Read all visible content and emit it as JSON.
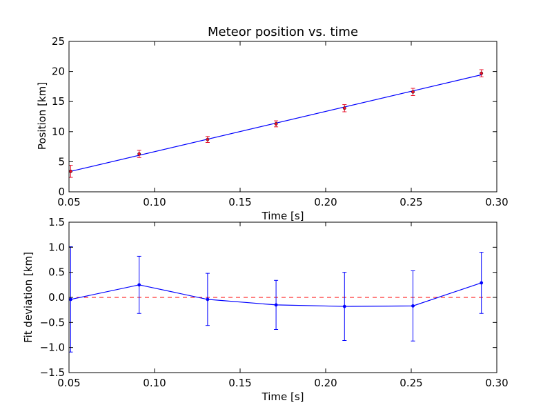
{
  "chart_data": [
    {
      "type": "scatter",
      "title": "Meteor position vs. time",
      "xlabel": "Time [s]",
      "ylabel": "Position [km]",
      "xlim": [
        0.05,
        0.3
      ],
      "ylim": [
        0,
        25
      ],
      "xticks": [
        "0.05",
        "0.10",
        "0.15",
        "0.20",
        "0.25",
        "0.30"
      ],
      "yticks": [
        "0",
        "5",
        "10",
        "15",
        "20",
        "25"
      ],
      "grid": false,
      "series": [
        {
          "kind": "errorbar-points",
          "color": "#e8102a",
          "x": [
            0.051,
            0.091,
            0.131,
            0.171,
            0.211,
            0.251,
            0.291
          ],
          "y": [
            3.4,
            6.3,
            8.7,
            11.3,
            13.9,
            16.6,
            19.7
          ],
          "yerr": [
            1.0,
            0.6,
            0.5,
            0.5,
            0.6,
            0.6,
            0.6
          ]
        },
        {
          "kind": "fit-line",
          "color": "#0000ff",
          "x": [
            0.051,
            0.291
          ],
          "y": [
            3.4,
            19.45
          ]
        }
      ]
    },
    {
      "type": "line",
      "title": "",
      "xlabel": "Time [s]",
      "ylabel": "Fit deviation [km]",
      "xlim": [
        0.05,
        0.3
      ],
      "ylim": [
        -1.5,
        1.5
      ],
      "xticks": [
        "0.05",
        "0.10",
        "0.15",
        "0.20",
        "0.25",
        "0.30"
      ],
      "yticks": [
        "−1.5",
        "−1.0",
        "−0.5",
        "0.0",
        "0.5",
        "1.0",
        "1.5"
      ],
      "grid": false,
      "series": [
        {
          "kind": "errorbar-line",
          "color": "#0000ff",
          "x": [
            0.051,
            0.091,
            0.131,
            0.171,
            0.211,
            0.251,
            0.291
          ],
          "y": [
            -0.04,
            0.25,
            -0.04,
            -0.15,
            -0.18,
            -0.17,
            0.29
          ],
          "yerr": [
            1.05,
            0.57,
            0.52,
            0.49,
            0.68,
            0.7,
            0.61
          ]
        },
        {
          "kind": "reference-dashed",
          "color": "#ff0000",
          "y": 0.0
        }
      ]
    }
  ]
}
